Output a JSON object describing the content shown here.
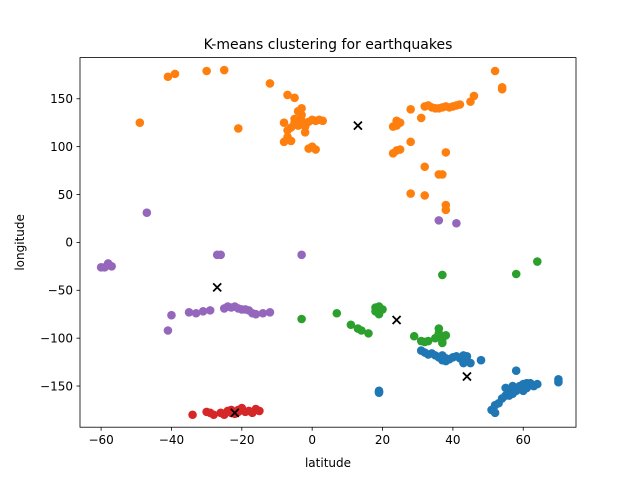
{
  "chart_data": {
    "type": "scatter",
    "title": "K-means clustering for earthquakes",
    "xlabel": "latitude",
    "ylabel": "longitude",
    "xlim": [
      -66,
      75
    ],
    "ylim": [
      -193,
      193
    ],
    "xticks": [
      -60,
      -40,
      -20,
      0,
      20,
      40,
      60
    ],
    "yticks": [
      -150,
      -100,
      -50,
      0,
      50,
      100,
      150
    ],
    "xtick_labels": [
      "−60",
      "−40",
      "−20",
      "0",
      "20",
      "40",
      "60"
    ],
    "ytick_labels": [
      "−150",
      "−100",
      "−50",
      "0",
      "50",
      "100",
      "150"
    ],
    "grid": false,
    "legend": "none",
    "series": [
      {
        "color": "#1f77b4",
        "points": [
          [
            31,
            -113
          ],
          [
            32,
            -115
          ],
          [
            33,
            -117
          ],
          [
            34,
            -116
          ],
          [
            35,
            -118
          ],
          [
            36,
            -120
          ],
          [
            37,
            -118
          ],
          [
            38,
            -121
          ],
          [
            39,
            -122
          ],
          [
            40,
            -120
          ],
          [
            41,
            -119
          ],
          [
            42,
            -121
          ],
          [
            43,
            -118
          ],
          [
            44,
            -124
          ],
          [
            45,
            -126
          ],
          [
            43,
            -126
          ],
          [
            44,
            -119
          ],
          [
            37,
            -123
          ],
          [
            38,
            -124
          ],
          [
            48,
            -123
          ],
          [
            52,
            -170
          ],
          [
            51,
            -175
          ],
          [
            52,
            -178
          ],
          [
            53,
            -168
          ],
          [
            55,
            -160
          ],
          [
            56,
            -155
          ],
          [
            57,
            -150
          ],
          [
            58,
            -152
          ],
          [
            59,
            -150
          ],
          [
            60,
            -148
          ],
          [
            61,
            -147
          ],
          [
            62,
            -149
          ],
          [
            63,
            -150
          ],
          [
            64,
            -148
          ],
          [
            57,
            -158
          ],
          [
            56,
            -160
          ],
          [
            54,
            -163
          ],
          [
            55,
            -152
          ],
          [
            58,
            -155
          ],
          [
            59,
            -153
          ],
          [
            60,
            -155
          ],
          [
            61,
            -152
          ],
          [
            62,
            -147
          ],
          [
            58,
            -134
          ],
          [
            60,
            -150
          ],
          [
            70,
            -143
          ],
          [
            70,
            -146
          ],
          [
            19,
            -155
          ],
          [
            19,
            -156
          ],
          [
            19,
            -157
          ]
        ]
      },
      {
        "color": "#ff7f0e",
        "points": [
          [
            -49,
            125
          ],
          [
            -41,
            173
          ],
          [
            -39,
            176
          ],
          [
            -30,
            179
          ],
          [
            -25,
            180
          ],
          [
            -21,
            119
          ],
          [
            -12,
            166
          ],
          [
            -7,
            154
          ],
          [
            -5,
            151
          ],
          [
            -5,
            129
          ],
          [
            -4,
            122
          ],
          [
            -3,
            127
          ],
          [
            -2,
            121
          ],
          [
            -1,
            126
          ],
          [
            0,
            128
          ],
          [
            1,
            127
          ],
          [
            -6,
            106
          ],
          [
            -7,
            110
          ],
          [
            -8,
            105
          ],
          [
            0,
            100
          ],
          [
            -1,
            98
          ],
          [
            1,
            97
          ],
          [
            2,
            128
          ],
          [
            3,
            127
          ],
          [
            -3,
            140
          ],
          [
            -4,
            137
          ],
          [
            -3,
            133
          ],
          [
            -7,
            117
          ],
          [
            -2,
            115
          ],
          [
            -6,
            120
          ],
          [
            -8,
            125
          ],
          [
            -5,
            125
          ],
          [
            23,
            121
          ],
          [
            24,
            122
          ],
          [
            24,
            127
          ],
          [
            25,
            125
          ],
          [
            23,
            93
          ],
          [
            24,
            96
          ],
          [
            25,
            97
          ],
          [
            28,
            105
          ],
          [
            28,
            139
          ],
          [
            31,
            130
          ],
          [
            32,
            142
          ],
          [
            33,
            143
          ],
          [
            34,
            141
          ],
          [
            35,
            140
          ],
          [
            36,
            140
          ],
          [
            37,
            141
          ],
          [
            38,
            142
          ],
          [
            39,
            141
          ],
          [
            40,
            142
          ],
          [
            41,
            143
          ],
          [
            42,
            144
          ],
          [
            45,
            147
          ],
          [
            46,
            153
          ],
          [
            52,
            179
          ],
          [
            54,
            160
          ],
          [
            54,
            162
          ],
          [
            32,
            79
          ],
          [
            38,
            94
          ],
          [
            36,
            71
          ],
          [
            37,
            71
          ],
          [
            28,
            51
          ],
          [
            32,
            49
          ],
          [
            38,
            39
          ],
          [
            38,
            34
          ]
        ]
      },
      {
        "color": "#2ca02c",
        "points": [
          [
            -3,
            -80
          ],
          [
            7,
            -74
          ],
          [
            11,
            -86
          ],
          [
            13,
            -90
          ],
          [
            14,
            -92
          ],
          [
            16,
            -95
          ],
          [
            18,
            -68
          ],
          [
            19,
            -67
          ],
          [
            19,
            -75
          ],
          [
            20,
            -70
          ],
          [
            18,
            -72
          ],
          [
            19,
            -70
          ],
          [
            29,
            -98
          ],
          [
            31,
            -103
          ],
          [
            32,
            -104
          ],
          [
            33,
            -103
          ],
          [
            35,
            -100
          ],
          [
            36,
            -95
          ],
          [
            36,
            -90
          ],
          [
            37,
            -101
          ],
          [
            38,
            -97
          ],
          [
            37,
            -105
          ],
          [
            37,
            -34
          ],
          [
            58,
            -33
          ],
          [
            64,
            -20
          ]
        ]
      },
      {
        "color": "#d62728",
        "points": [
          [
            -34,
            -180
          ],
          [
            -30,
            -177
          ],
          [
            -29,
            -178
          ],
          [
            -28,
            -180
          ],
          [
            -26,
            -178
          ],
          [
            -24,
            -176
          ],
          [
            -23,
            -175
          ],
          [
            -22,
            -179
          ],
          [
            -21,
            -175
          ],
          [
            -20,
            -173
          ],
          [
            -19,
            -177
          ],
          [
            -18,
            -176
          ],
          [
            -17,
            -178
          ],
          [
            -16,
            -174
          ],
          [
            -15,
            -176
          ],
          [
            -23,
            -178
          ],
          [
            -21,
            -177
          ],
          [
            -25,
            -180
          ]
        ]
      },
      {
        "color": "#9467bd",
        "points": [
          [
            -60,
            -26
          ],
          [
            -59,
            -26
          ],
          [
            -58,
            -24
          ],
          [
            -57,
            -25
          ],
          [
            -58,
            -22
          ],
          [
            -47,
            31
          ],
          [
            -41,
            -92
          ],
          [
            -40,
            -76
          ],
          [
            -35,
            -73
          ],
          [
            -33,
            -74
          ],
          [
            -31,
            -72
          ],
          [
            -29,
            -71
          ],
          [
            -27,
            -13
          ],
          [
            -26,
            -13
          ],
          [
            -25,
            -69
          ],
          [
            -24,
            -67
          ],
          [
            -23,
            -68
          ],
          [
            -22,
            -67
          ],
          [
            -21,
            -69
          ],
          [
            -20,
            -70
          ],
          [
            -19,
            -70
          ],
          [
            -18,
            -71
          ],
          [
            -17,
            -74
          ],
          [
            -16,
            -75
          ],
          [
            -14,
            -74
          ],
          [
            -12,
            -73
          ],
          [
            -3,
            -13
          ],
          [
            36,
            23
          ],
          [
            41,
            20
          ]
        ]
      }
    ],
    "centroids": {
      "color": "#000000",
      "points": [
        [
          44,
          -140
        ],
        [
          13,
          122
        ],
        [
          24,
          -81
        ],
        [
          -22,
          -178
        ],
        [
          -27,
          -47
        ]
      ]
    }
  }
}
